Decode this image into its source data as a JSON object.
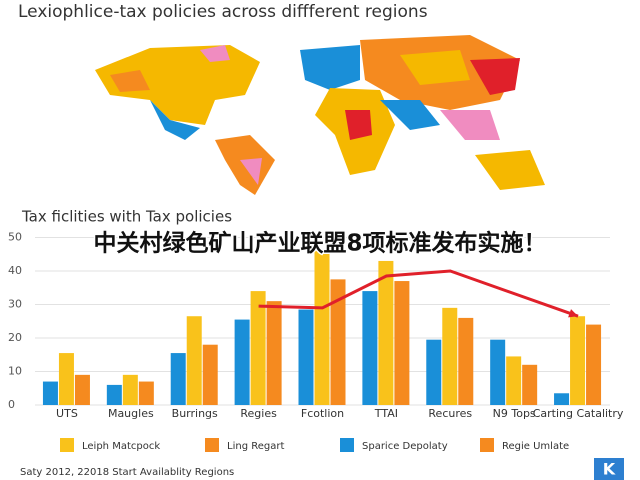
{
  "header": {
    "title": "Lexiophlice-tax policies across diffferent regions"
  },
  "overlay": {
    "headline": "中关村绿色矿山产业联盟8项标准发布实施！"
  },
  "chart_data": {
    "type": "bar",
    "title": "Tax ficlities with Tax policies",
    "categories": [
      "UTS",
      "Maugles",
      "Burrings",
      "Regies",
      "Fcotlion",
      "TTAI",
      "Recures",
      "N9 Tops",
      "Carting Catalitry"
    ],
    "series": [
      {
        "name": "Sparice Depolaty",
        "color": "#1a8fd8",
        "values": [
          7,
          6,
          15.5,
          25.5,
          28.5,
          34,
          19.5,
          19.5,
          3.5
        ]
      },
      {
        "name": "Leiph Matcpock",
        "color": "#f9c21b",
        "values": [
          15.5,
          9,
          26.5,
          34,
          46,
          43,
          29,
          14.5,
          26.5
        ]
      },
      {
        "name": "Ling Regart",
        "color": "#f58a1f",
        "values": [
          9,
          7,
          18,
          31,
          37.5,
          37,
          26,
          12,
          24
        ]
      }
    ],
    "legend_extra": [
      {
        "name": "Regie Umlate",
        "color": "#f58a1f"
      }
    ],
    "trend": {
      "color": "#e0202a",
      "x": [
        3,
        4,
        5,
        6,
        8
      ],
      "values": [
        29.5,
        29,
        38.5,
        40,
        26.5
      ]
    },
    "ylim": [
      0,
      50
    ],
    "yticks": [
      0,
      10,
      20,
      30,
      40,
      50
    ],
    "grid": true
  },
  "footer": {
    "note": "Saty 2012, 22018 Start Availablity Regions",
    "logo": "K"
  }
}
